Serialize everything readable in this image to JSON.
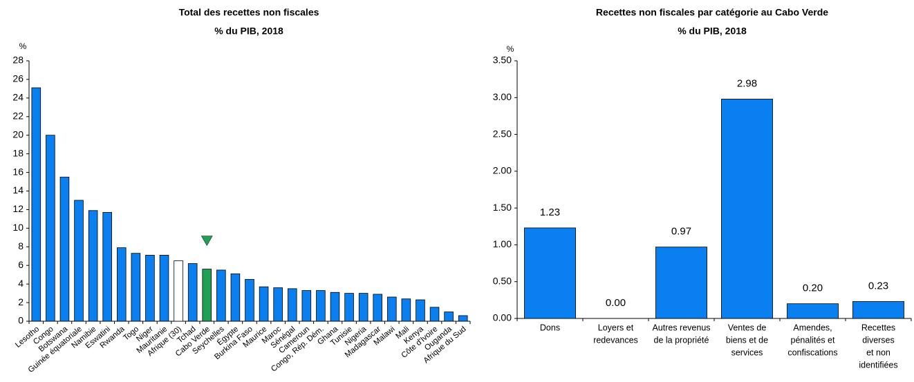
{
  "chart_data": [
    {
      "type": "bar",
      "title": "Total des recettes non fiscales",
      "subtitle": "% du PIB, 2018",
      "y_unit": "%",
      "categories": [
        "Lesotho",
        "Congo",
        "Botswana",
        "Guinée équatoriale",
        "Namibie",
        "Eswatini",
        "Rwanda",
        "Togo",
        "Niger",
        "Mauritanie",
        "Afrique (30)",
        "Tchad",
        "Cabo Verde",
        "Seychelles",
        "Égypte",
        "Burkina Faso",
        "Maurice",
        "Maroc",
        "Sénégal",
        "Cameroun",
        "Congo, Rép. Dém.",
        "Ghana",
        "Tunisie",
        "Nigeria",
        "Madagascar",
        "Malawi",
        "Mali",
        "Kenya",
        "Côte d'Ivoire",
        "Ouganda",
        "Afrique du Sud"
      ],
      "values": [
        25.1,
        20.0,
        15.5,
        13.0,
        11.9,
        11.7,
        7.9,
        7.3,
        7.1,
        7.1,
        6.5,
        6.2,
        5.6,
        5.5,
        5.1,
        4.5,
        3.7,
        3.6,
        3.5,
        3.3,
        3.3,
        3.1,
        3.0,
        3.0,
        2.9,
        2.6,
        2.4,
        2.3,
        1.5,
        1.0,
        0.6
      ],
      "colors": [
        "#0a7ff0",
        "#0a7ff0",
        "#0a7ff0",
        "#0a7ff0",
        "#0a7ff0",
        "#0a7ff0",
        "#0a7ff0",
        "#0a7ff0",
        "#0a7ff0",
        "#0a7ff0",
        "#ffffff",
        "#0a7ff0",
        "#1fa055",
        "#0a7ff0",
        "#0a7ff0",
        "#0a7ff0",
        "#0a7ff0",
        "#0a7ff0",
        "#0a7ff0",
        "#0a7ff0",
        "#0a7ff0",
        "#0a7ff0",
        "#0a7ff0",
        "#0a7ff0",
        "#0a7ff0",
        "#0a7ff0",
        "#0a7ff0",
        "#0a7ff0",
        "#0a7ff0",
        "#0a7ff0",
        "#0a7ff0"
      ],
      "highlight_index": 12,
      "highlight_color": "#1fa055",
      "ylim": [
        0,
        28
      ],
      "yticks": [
        0,
        2,
        4,
        6,
        8,
        10,
        12,
        14,
        16,
        18,
        20,
        22,
        24,
        26,
        28
      ],
      "grid": false
    },
    {
      "type": "bar",
      "title": "Recettes non fiscales par catégorie au Cabo Verde",
      "subtitle": "% du PIB, 2018",
      "y_unit": "%",
      "categories": [
        [
          "Dons"
        ],
        [
          "Loyers et",
          "redevances"
        ],
        [
          "Autres revenus",
          "de la propriété"
        ],
        [
          "Ventes de",
          "biens et de",
          "services"
        ],
        [
          "Amendes,",
          "pénalités et",
          "confiscations"
        ],
        [
          "Recettes",
          "diverses",
          "et non",
          "identifiées"
        ]
      ],
      "values": [
        1.23,
        0.0,
        0.97,
        2.98,
        0.2,
        0.23
      ],
      "value_labels": [
        "1.23",
        "0.00",
        "0.97",
        "2.98",
        "0.20",
        "0.23"
      ],
      "color": "#0a7ff0",
      "ylim": [
        0,
        3.5
      ],
      "yticks": [
        {
          "value": 0,
          "label": "0.00"
        },
        {
          "value": 0.5,
          "label": "0.50"
        },
        {
          "value": 1,
          "label": "1.00"
        },
        {
          "value": 1.5,
          "label": "1.50"
        },
        {
          "value": 2,
          "label": "2.00"
        },
        {
          "value": 2.5,
          "label": "2.50"
        },
        {
          "value": 3,
          "label": "3.00"
        },
        {
          "value": 3.5,
          "label": "3.50"
        }
      ],
      "grid": false
    }
  ]
}
